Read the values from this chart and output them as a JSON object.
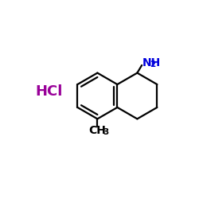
{
  "background_color": "#ffffff",
  "bond_color": "#000000",
  "nh2_color": "#0000dd",
  "hcl_color": "#990099",
  "ch3_color": "#000000",
  "hcl_text": "HCl",
  "nh2_text": "NH",
  "nh2_sub": "2",
  "ch3_text": "CH",
  "ch3_sub": "3",
  "figsize": [
    2.5,
    2.5
  ],
  "dpi": 100,
  "xlim": [
    0,
    10
  ],
  "ylim": [
    0,
    10
  ]
}
